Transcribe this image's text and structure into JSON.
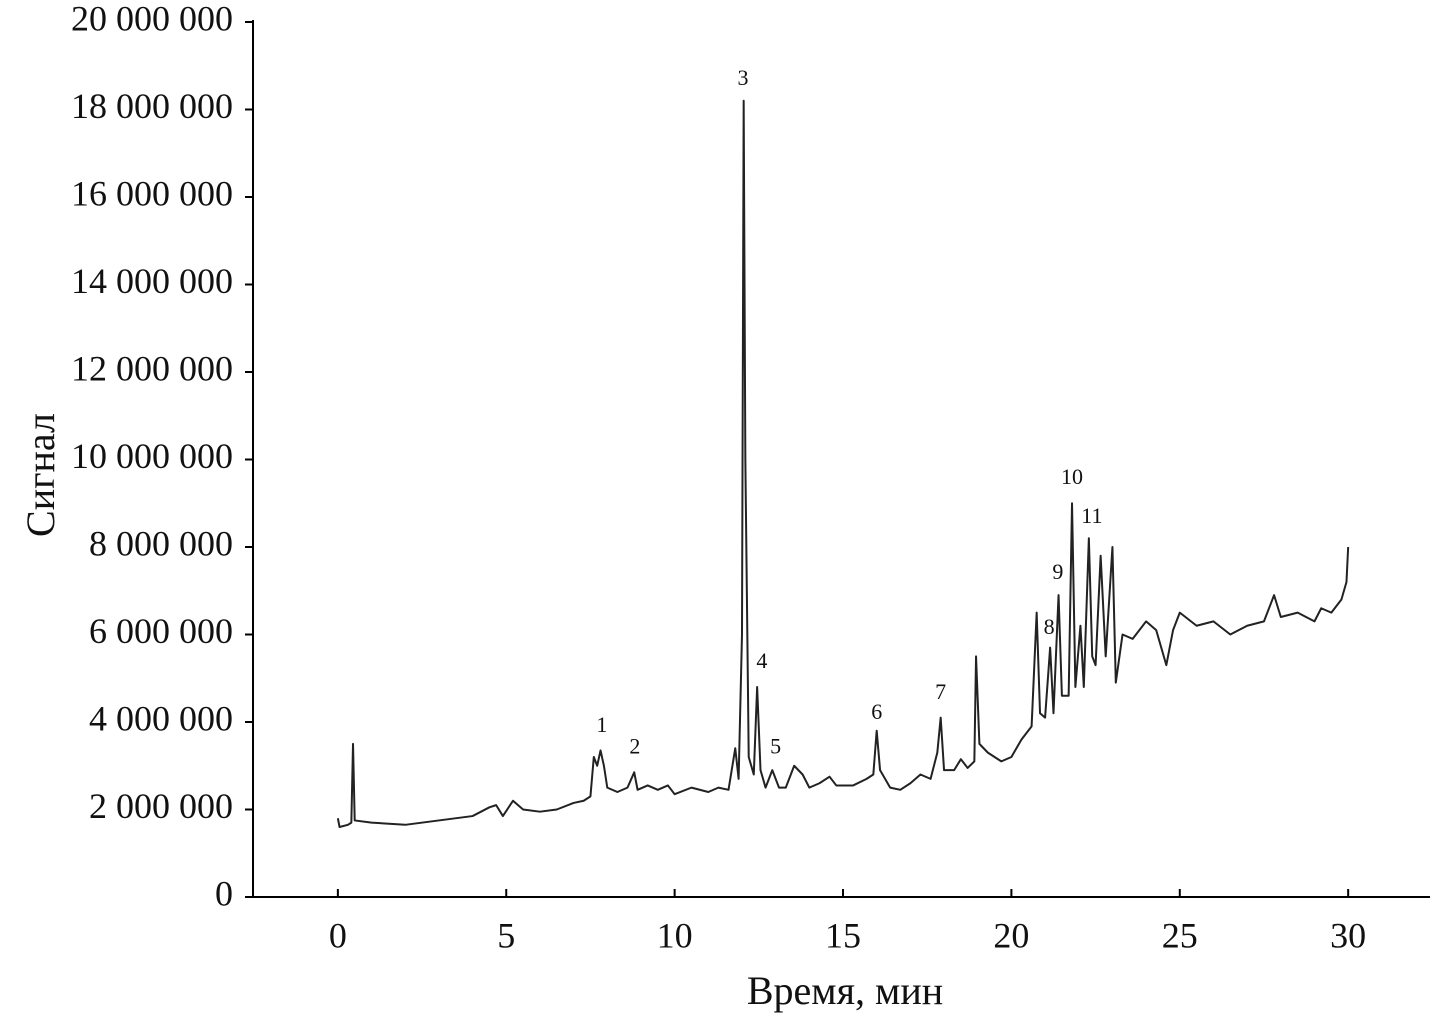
{
  "chart_data": {
    "type": "line",
    "x_label": "Время, мин",
    "y_label": "Сигнал",
    "color": "#222222",
    "xlim": [
      -2.52,
      32.43
    ],
    "xticks": [
      0,
      5,
      10,
      15,
      20,
      25,
      30
    ],
    "ylim": [
      0,
      20000000
    ],
    "yticks": [
      0,
      {
        "value": 2000000,
        "label": "2 000 000"
      },
      {
        "value": 4000000,
        "label": "4 000 000"
      },
      {
        "value": 6000000,
        "label": "6 000 000"
      },
      {
        "value": 8000000,
        "label": "8 000 000"
      },
      {
        "value": 10000000,
        "label": "10 000 000"
      },
      {
        "value": 12000000,
        "label": "12 000 000"
      },
      {
        "value": 14000000,
        "label": "14 000 000"
      },
      {
        "value": 16000000,
        "label": "16 000 000"
      },
      {
        "value": 18000000,
        "label": "18 000 000"
      },
      {
        "value": 20000000,
        "label": "20 000 000"
      }
    ],
    "x": [
      0,
      0.05,
      0.3,
      0.4,
      0.45,
      0.5,
      1,
      2,
      3,
      4,
      4.5,
      4.7,
      4.9,
      5.2,
      5.5,
      6,
      6.5,
      7,
      7.3,
      7.5,
      7.6,
      7.7,
      7.8,
      7.9,
      8.0,
      8.3,
      8.6,
      8.8,
      8.9,
      9.2,
      9.5,
      9.8,
      10,
      10.5,
      11,
      11.3,
      11.6,
      11.8,
      11.9,
      12.0,
      12.05,
      12.1,
      12.2,
      12.35,
      12.45,
      12.55,
      12.7,
      12.9,
      13.1,
      13.3,
      13.55,
      13.8,
      14.0,
      14.3,
      14.6,
      14.8,
      15.3,
      15.7,
      15.9,
      16.0,
      16.1,
      16.4,
      16.7,
      17.0,
      17.3,
      17.6,
      17.8,
      17.9,
      18.0,
      18.3,
      18.5,
      18.7,
      18.9,
      18.95,
      19.05,
      19.3,
      19.7,
      20.0,
      20.3,
      20.6,
      20.75,
      20.85,
      21.0,
      21.15,
      21.25,
      21.4,
      21.5,
      21.7,
      21.8,
      21.9,
      22.05,
      22.15,
      22.3,
      22.4,
      22.5,
      22.65,
      22.8,
      23.0,
      23.1,
      23.3,
      23.6,
      24,
      24.3,
      24.6,
      24.8,
      25,
      25.5,
      26,
      26.5,
      27,
      27.5,
      27.8,
      28,
      28.5,
      29,
      29.2,
      29.5,
      29.8,
      29.95,
      30.0
    ],
    "values": [
      1800000,
      1600000,
      1650000,
      1700000,
      3500000,
      1750000,
      1700000,
      1650000,
      1750000,
      1850000,
      2050000,
      2100000,
      1850000,
      2200000,
      2000000,
      1950000,
      2000000,
      2150000,
      2200000,
      2300000,
      3200000,
      3000000,
      3350000,
      3000000,
      2500000,
      2400000,
      2500000,
      2850000,
      2450000,
      2550000,
      2450000,
      2550000,
      2350000,
      2500000,
      2400000,
      2500000,
      2450000,
      3400000,
      2700000,
      6000000,
      18200000,
      10000000,
      3200000,
      2800000,
      4800000,
      2900000,
      2500000,
      2900000,
      2500000,
      2500000,
      3000000,
      2800000,
      2500000,
      2600000,
      2750000,
      2550000,
      2550000,
      2700000,
      2800000,
      3800000,
      2900000,
      2500000,
      2450000,
      2600000,
      2800000,
      2700000,
      3300000,
      4100000,
      2900000,
      2900000,
      3150000,
      2950000,
      3100000,
      5500000,
      3500000,
      3300000,
      3100000,
      3200000,
      3600000,
      3900000,
      6500000,
      4200000,
      4100000,
      5700000,
      4200000,
      6900000,
      4600000,
      4600000,
      9000000,
      4800000,
      6200000,
      4800000,
      8200000,
      5500000,
      5300000,
      7800000,
      5500000,
      8000000,
      4900000,
      6000000,
      5900000,
      6300000,
      6100000,
      5300000,
      6100000,
      6500000,
      6200000,
      6300000,
      6000000,
      6200000,
      6300000,
      6900000,
      6400000,
      6500000,
      6300000,
      6600000,
      6500000,
      6800000,
      7200000,
      8000000
    ],
    "annotations": [
      {
        "text": "1",
        "x": 7.84,
        "y": 3890000
      },
      {
        "text": "2",
        "x": 8.82,
        "y": 3400000
      },
      {
        "text": "3",
        "x": 12.03,
        "y": 18670000
      },
      {
        "text": "4",
        "x": 12.59,
        "y": 5350000
      },
      {
        "text": "5",
        "x": 13.0,
        "y": 3400000
      },
      {
        "text": "6",
        "x": 16.0,
        "y": 4180000
      },
      {
        "text": "7",
        "x": 17.9,
        "y": 4640000
      },
      {
        "text": "8",
        "x": 21.12,
        "y": 6130000
      },
      {
        "text": "9",
        "x": 21.38,
        "y": 7380000
      },
      {
        "text": "10",
        "x": 21.8,
        "y": 9550000
      },
      {
        "text": "11",
        "x": 22.39,
        "y": 8660000
      }
    ]
  }
}
